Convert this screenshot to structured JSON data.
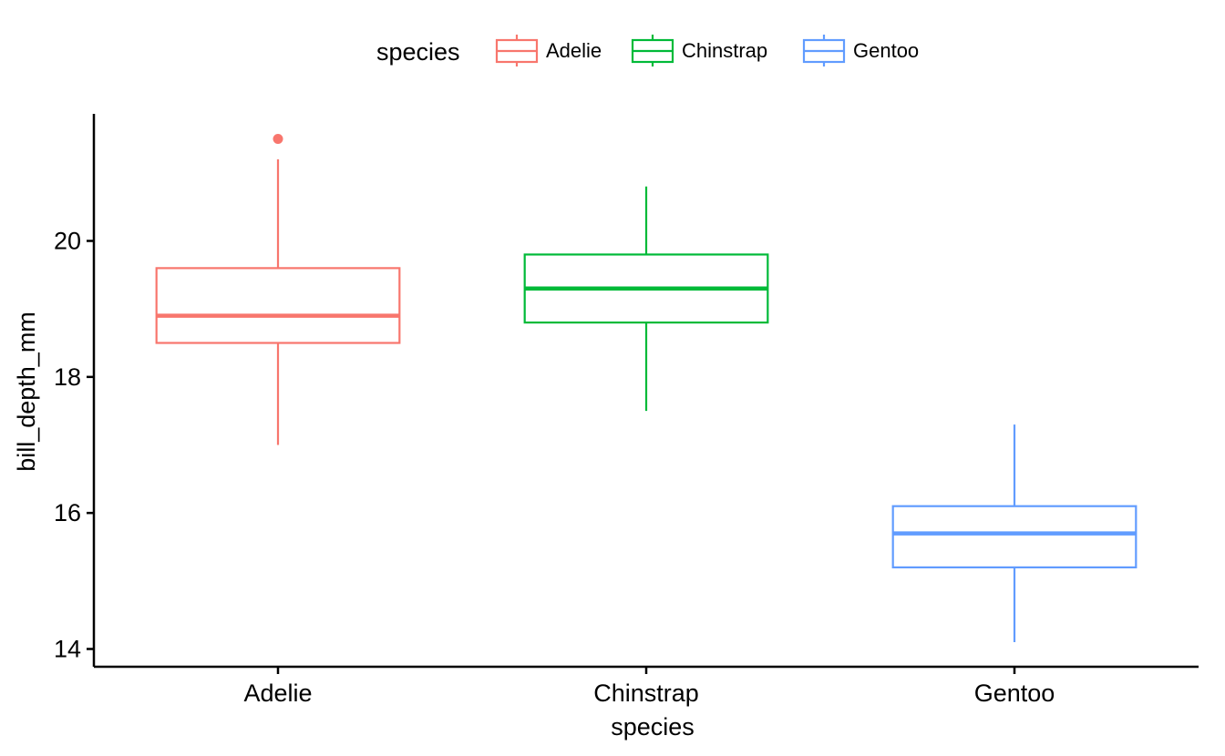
{
  "chart_data": {
    "type": "box",
    "xlabel": "species",
    "ylabel": "bill_depth_mm",
    "categories": [
      "Adelie",
      "Chinstrap",
      "Gentoo"
    ],
    "ylim": [
      13.7,
      21.85
    ],
    "yticks": [
      14,
      16,
      18,
      20
    ],
    "grid": false,
    "legend": {
      "title": "species",
      "position": "top",
      "entries": [
        "Adelie",
        "Chinstrap",
        "Gentoo"
      ]
    },
    "boxes": [
      {
        "category": "Adelie",
        "color": "#F8766D",
        "whisker_low": 17.0,
        "q1": 18.5,
        "median": 18.9,
        "q3": 19.6,
        "whisker_high": 21.2,
        "outliers": [
          21.5
        ]
      },
      {
        "category": "Chinstrap",
        "color": "#00BA38",
        "whisker_low": 17.5,
        "q1": 18.8,
        "median": 19.3,
        "q3": 19.8,
        "whisker_high": 20.8,
        "outliers": []
      },
      {
        "category": "Gentoo",
        "color": "#619CFF",
        "whisker_low": 14.1,
        "q1": 15.2,
        "median": 15.7,
        "q3": 16.1,
        "whisker_high": 17.3,
        "outliers": []
      }
    ]
  }
}
